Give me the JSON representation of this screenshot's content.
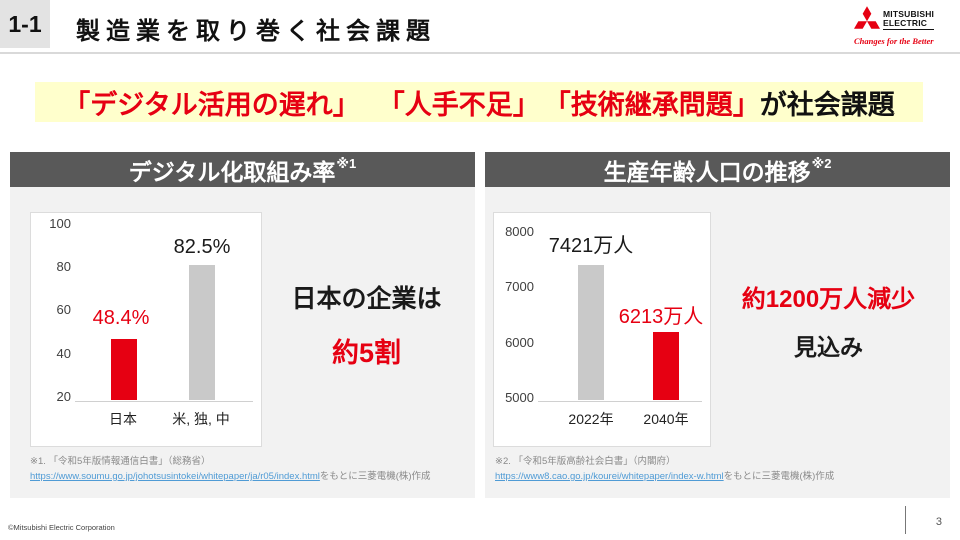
{
  "colors": {
    "accent_red": "#e60012",
    "bar_gray": "#c9c9c9",
    "panel_header_bg": "#595959",
    "panel_bg": "#f2f2f2",
    "banner_bg": "#ffffcc",
    "link_blue": "#4f9bd5",
    "divider_gray": "#d9d9d9"
  },
  "header": {
    "slide_number": "1-1",
    "title": "製造業を取り巻く社会課題"
  },
  "logo": {
    "brand_line1": "MITSUBISHI",
    "brand_line2": "ELECTRIC",
    "tagline": "Changes for the Better"
  },
  "banner": {
    "phrase1": "「デジタル活用の遅れ」",
    "phrase2": "「人手不足」",
    "phrase3": "「技術継承問題」",
    "suffix": "が社会課題"
  },
  "chart_data": [
    {
      "type": "bar",
      "title": "デジタル化取組み率",
      "categories": [
        "日本",
        "米, 独, 中"
      ],
      "values": [
        48.4,
        82.5
      ],
      "value_labels": [
        "48.4%",
        "82.5%"
      ],
      "value_label_colors": [
        "#e60012",
        "#1a1a1a"
      ],
      "bar_colors": [
        "#e60012",
        "#c9c9c9"
      ],
      "yticks": [
        "100",
        "80",
        "60",
        "40",
        "20"
      ],
      "ylim": [
        20,
        100
      ],
      "unit": "%",
      "grid": false,
      "legend": false
    },
    {
      "type": "bar",
      "title": "生産年齢人口の推移",
      "categories": [
        "2022年",
        "2040年"
      ],
      "values": [
        7421,
        6213
      ],
      "value_labels": [
        "7421万人",
        "6213万人"
      ],
      "value_label_colors": [
        "#1a1a1a",
        "#e60012"
      ],
      "bar_colors": [
        "#c9c9c9",
        "#e60012"
      ],
      "yticks": [
        "8000",
        "7000",
        "6000",
        "5000"
      ],
      "ylim": [
        5000,
        8000
      ],
      "unit": "万人",
      "grid": false,
      "legend": false
    }
  ],
  "panels": [
    {
      "header_note": "※1",
      "message_line1": "日本の企業は",
      "message_line2": "約5割",
      "footnote_line1": "※1. 「令和5年版情報通信白書」（総務省）",
      "footnote_link": "https://www.soumu.go.jp/johotsusintokei/whitepaper/ja/r05/index.html",
      "footnote_suffix": "をもとに三菱電機(株)作成"
    },
    {
      "header_note": "※2",
      "message_line1": "約1200万人減少",
      "message_line2": "見込み",
      "footnote_line1": "※2. 「令和5年版高齢社会白書」（内閣府）",
      "footnote_link": "https://www8.cao.go.jp/kourei/whitepaper/index-w.html",
      "footnote_suffix": "をもとに三菱電機(株)作成"
    }
  ],
  "footer": {
    "copyright": "©Mitsubishi Electric Corporation",
    "page_number": "3"
  }
}
